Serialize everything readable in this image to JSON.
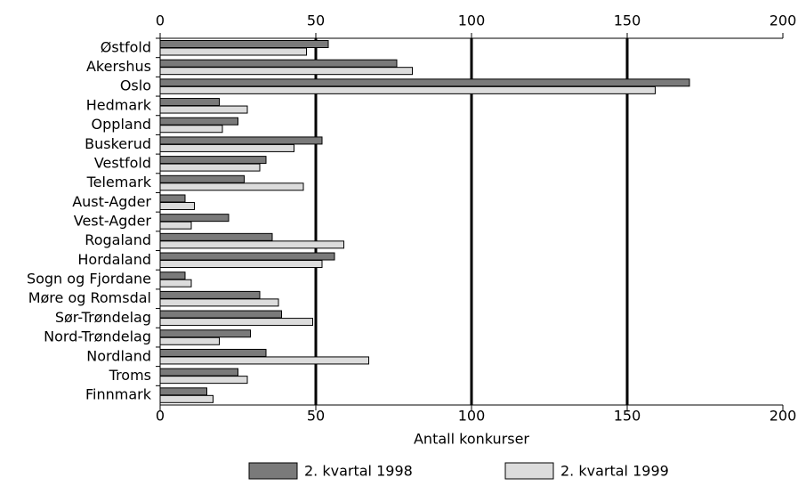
{
  "chart_data": {
    "type": "hbar",
    "xlabel": "Antall konkurser",
    "categories": [
      "Østfold",
      "Akershus",
      "Oslo",
      "Hedmark",
      "Oppland",
      "Buskerud",
      "Vestfold",
      "Telemark",
      "Aust-Agder",
      "Vest-Agder",
      "Rogaland",
      "Hordaland",
      "Sogn og Fjordane",
      "Møre og Romsdal",
      "Sør-Trøndelag",
      "Nord-Trøndelag",
      "Nordland",
      "Troms",
      "Finnmark"
    ],
    "series": [
      {
        "name": "2. kvartal 1998",
        "color": "#7a7a7a",
        "values": [
          54,
          76,
          170,
          19,
          25,
          52,
          34,
          27,
          8,
          22,
          36,
          56,
          8,
          32,
          39,
          29,
          34,
          25,
          15
        ]
      },
      {
        "name": "2. kvartal 1999",
        "color": "#dcdcdc",
        "values": [
          47,
          81,
          159,
          28,
          20,
          43,
          32,
          46,
          11,
          10,
          59,
          52,
          10,
          38,
          49,
          19,
          67,
          28,
          17
        ]
      }
    ],
    "xlim": [
      0,
      200
    ],
    "xticks": [
      0,
      50,
      100,
      150,
      200
    ],
    "grid": true
  }
}
